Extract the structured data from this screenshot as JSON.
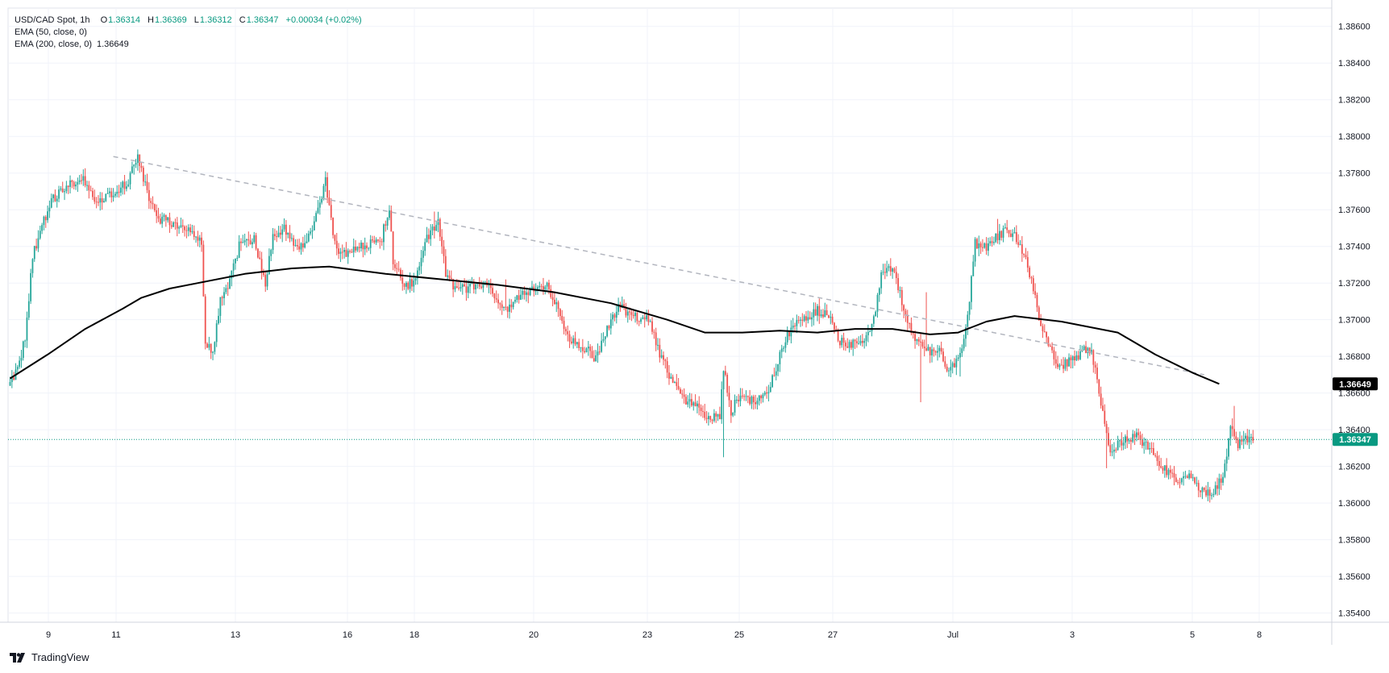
{
  "legend": {
    "symbol": "USD/CAD Spot, 1h",
    "o_label": "O",
    "open": "1.36314",
    "h_label": "H",
    "high": "1.36369",
    "l_label": "L",
    "low": "1.36312",
    "c_label": "C",
    "close": "1.36347",
    "change": "+0.00034 (+0.02%)",
    "ema50": "EMA (50, close, 0)",
    "ema200": "EMA (200, close, 0)",
    "ema200_value": "1.36649"
  },
  "brand": "TradingView",
  "colors": {
    "up": "#26a69a",
    "down": "#ef5350",
    "ema200": "#000000",
    "trendline": "#b2b5be",
    "price_line": "#089981",
    "grid": "#f0f3fa",
    "axis_text": "#131722"
  },
  "chart_data": {
    "type": "candlestick",
    "timeframe": "1h",
    "y_ticks": [
      "1.38600",
      "1.38400",
      "1.38200",
      "1.38000",
      "1.37800",
      "1.37600",
      "1.37400",
      "1.37200",
      "1.37000",
      "1.36800",
      "1.36600",
      "1.36400",
      "1.36200",
      "1.36000",
      "1.35800",
      "1.35600",
      "1.35400"
    ],
    "x_ticks": [
      "9",
      "11",
      "13",
      "16",
      "18",
      "20",
      "23",
      "25",
      "27",
      "Jul",
      "3",
      "5",
      "8"
    ],
    "ylim": [
      1.3535,
      1.387
    ],
    "last_price": 1.36347,
    "last_price_label": "1.36347",
    "ema200_label": "1.36649",
    "ema200": [
      [
        0,
        1.3668
      ],
      [
        20,
        1.3681
      ],
      [
        40,
        1.3695
      ],
      [
        60,
        1.3706
      ],
      [
        70,
        1.3712
      ],
      [
        85,
        1.3717
      ],
      [
        100,
        1.372
      ],
      [
        125,
        1.3725
      ],
      [
        150,
        1.3728
      ],
      [
        170,
        1.3729
      ],
      [
        200,
        1.3725
      ],
      [
        230,
        1.3722
      ],
      [
        260,
        1.3719
      ],
      [
        290,
        1.3715
      ],
      [
        320,
        1.3709
      ],
      [
        350,
        1.37
      ],
      [
        370,
        1.3693
      ],
      [
        390,
        1.3693
      ],
      [
        410,
        1.3694
      ],
      [
        430,
        1.3693
      ],
      [
        450,
        1.3695
      ],
      [
        470,
        1.3695
      ],
      [
        490,
        1.3692
      ],
      [
        505,
        1.3693
      ],
      [
        520,
        1.3699
      ],
      [
        535,
        1.3702
      ],
      [
        560,
        1.3699
      ],
      [
        590,
        1.3693
      ],
      [
        610,
        1.3681
      ],
      [
        630,
        1.3671
      ],
      [
        644,
        1.3665
      ]
    ],
    "trendline": [
      [
        55,
        1.3789
      ],
      [
        636,
        1.367
      ]
    ],
    "anchors": [
      [
        0,
        1.3666
      ],
      [
        4,
        1.3672
      ],
      [
        8,
        1.369
      ],
      [
        12,
        1.3735
      ],
      [
        16,
        1.3748
      ],
      [
        22,
        1.3765
      ],
      [
        30,
        1.3772
      ],
      [
        38,
        1.3778
      ],
      [
        44,
        1.3767
      ],
      [
        50,
        1.3766
      ],
      [
        56,
        1.377
      ],
      [
        62,
        1.3774
      ],
      [
        68,
        1.3788
      ],
      [
        74,
        1.3765
      ],
      [
        80,
        1.3755
      ],
      [
        88,
        1.3752
      ],
      [
        96,
        1.3748
      ],
      [
        102,
        1.3742
      ],
      [
        104,
        1.3688
      ],
      [
        108,
        1.3682
      ],
      [
        112,
        1.371
      ],
      [
        116,
        1.3718
      ],
      [
        122,
        1.374
      ],
      [
        130,
        1.3745
      ],
      [
        136,
        1.372
      ],
      [
        140,
        1.3745
      ],
      [
        146,
        1.375
      ],
      [
        152,
        1.374
      ],
      [
        158,
        1.3742
      ],
      [
        164,
        1.376
      ],
      [
        168,
        1.3776
      ],
      [
        172,
        1.3748
      ],
      [
        176,
        1.3735
      ],
      [
        184,
        1.3738
      ],
      [
        192,
        1.3742
      ],
      [
        198,
        1.3745
      ],
      [
        202,
        1.3762
      ],
      [
        204,
        1.3732
      ],
      [
        210,
        1.3718
      ],
      [
        216,
        1.3722
      ],
      [
        222,
        1.3745
      ],
      [
        228,
        1.3754
      ],
      [
        232,
        1.3725
      ],
      [
        238,
        1.3716
      ],
      [
        246,
        1.3718
      ],
      [
        254,
        1.372
      ],
      [
        262,
        1.3704
      ],
      [
        270,
        1.3712
      ],
      [
        278,
        1.3716
      ],
      [
        286,
        1.372
      ],
      [
        292,
        1.3705
      ],
      [
        298,
        1.3688
      ],
      [
        306,
        1.3685
      ],
      [
        312,
        1.3678
      ],
      [
        318,
        1.3695
      ],
      [
        324,
        1.3708
      ],
      [
        330,
        1.3702
      ],
      [
        340,
        1.37
      ],
      [
        346,
        1.3682
      ],
      [
        352,
        1.3668
      ],
      [
        360,
        1.3655
      ],
      [
        368,
        1.3652
      ],
      [
        372,
        1.3645
      ],
      [
        378,
        1.3648
      ],
      [
        380,
        1.3674
      ],
      [
        384,
        1.365
      ],
      [
        388,
        1.3658
      ],
      [
        396,
        1.3655
      ],
      [
        404,
        1.3662
      ],
      [
        410,
        1.368
      ],
      [
        416,
        1.3696
      ],
      [
        424,
        1.37
      ],
      [
        430,
        1.3705
      ],
      [
        436,
        1.3702
      ],
      [
        442,
        1.3688
      ],
      [
        448,
        1.3686
      ],
      [
        454,
        1.3688
      ],
      [
        460,
        1.37
      ],
      [
        464,
        1.3725
      ],
      [
        468,
        1.373
      ],
      [
        472,
        1.3722
      ],
      [
        476,
        1.3705
      ],
      [
        480,
        1.3694
      ],
      [
        484,
        1.3688
      ],
      [
        490,
        1.3683
      ],
      [
        496,
        1.3682
      ],
      [
        500,
        1.3672
      ],
      [
        506,
        1.368
      ],
      [
        510,
        1.3702
      ],
      [
        514,
        1.3742
      ],
      [
        518,
        1.3738
      ],
      [
        524,
        1.3745
      ],
      [
        530,
        1.3748
      ],
      [
        536,
        1.3745
      ],
      [
        542,
        1.373
      ],
      [
        548,
        1.3702
      ],
      [
        552,
        1.369
      ],
      [
        556,
        1.3678
      ],
      [
        560,
        1.3675
      ],
      [
        566,
        1.3678
      ],
      [
        572,
        1.3684
      ],
      [
        576,
        1.3682
      ],
      [
        582,
        1.365
      ],
      [
        586,
        1.3628
      ],
      [
        592,
        1.3634
      ],
      [
        600,
        1.3636
      ],
      [
        608,
        1.3628
      ],
      [
        614,
        1.362
      ],
      [
        622,
        1.3612
      ],
      [
        628,
        1.3614
      ],
      [
        634,
        1.3608
      ],
      [
        640,
        1.3605
      ],
      [
        646,
        1.3615
      ],
      [
        650,
        1.364
      ],
      [
        654,
        1.3632
      ],
      [
        658,
        1.3635
      ],
      [
        662,
        1.3634
      ]
    ],
    "wick_spikes": [
      [
        226,
        1.3759,
        "hi"
      ],
      [
        264,
        1.3722,
        "hi"
      ],
      [
        380,
        1.3625,
        "lo"
      ],
      [
        485,
        1.3655,
        "lo"
      ],
      [
        488,
        1.3715,
        "hi"
      ],
      [
        506,
        1.3669,
        "lo"
      ],
      [
        526,
        1.3755,
        "hi"
      ],
      [
        584,
        1.3619,
        "lo"
      ],
      [
        652,
        1.3653,
        "hi"
      ]
    ]
  }
}
